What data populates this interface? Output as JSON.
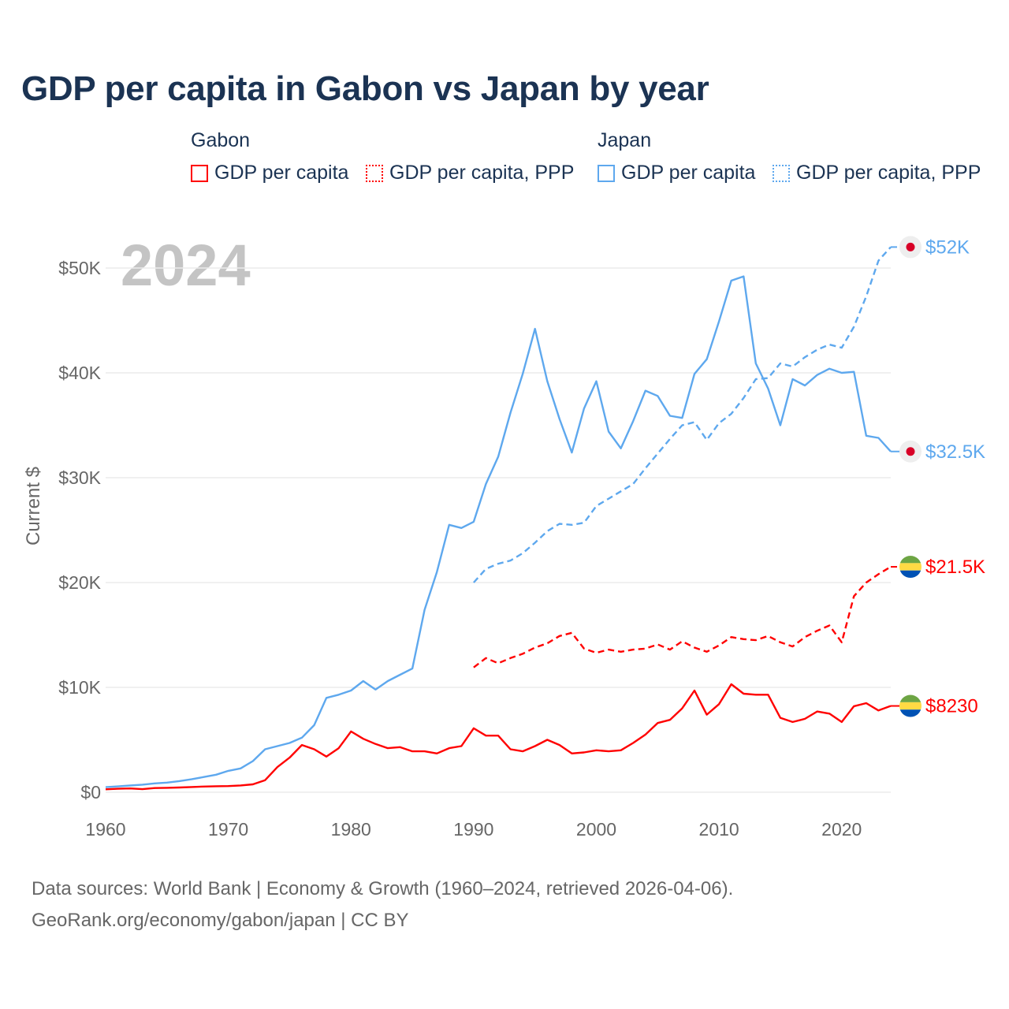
{
  "title": "GDP per capita in Gabon vs Japan by year",
  "legend": {
    "groups": [
      "Gabon",
      "Japan"
    ],
    "items": [
      {
        "label": "GDP per capita",
        "country": "Gabon",
        "style": "solid",
        "color": "#ff0000"
      },
      {
        "label": "GDP per capita, PPP",
        "country": "Gabon",
        "style": "dotted",
        "color": "#ff0000"
      },
      {
        "label": "GDP per capita",
        "country": "Japan",
        "style": "solid",
        "color": "#5ea8ee"
      },
      {
        "label": "GDP per capita, PPP",
        "country": "Japan",
        "style": "dotted",
        "color": "#5ea8ee"
      }
    ]
  },
  "source": {
    "line1": "Data sources: World Bank | Economy & Growth (1960–2024, retrieved 2026-04-06).",
    "line2": "GeoRank.org/economy/gabon/japan | CC BY"
  },
  "chart_data": {
    "type": "line",
    "title": "GDP per capita in Gabon vs Japan by year",
    "year_watermark": "2024",
    "xlabel": "",
    "ylabel": "Current $",
    "xlim": [
      1960,
      2024
    ],
    "ylim": [
      0,
      50000
    ],
    "x_ticks": [
      1960,
      1970,
      1980,
      1990,
      2000,
      2010,
      2020
    ],
    "x_tick_labels": [
      "1960",
      "1970",
      "1980",
      "1990",
      "2000",
      "2010",
      "2020"
    ],
    "y_ticks": [
      0,
      10000,
      20000,
      30000,
      40000,
      50000
    ],
    "y_tick_labels": [
      "$0",
      "$10K",
      "$20K",
      "$30K",
      "$40K",
      "$50K"
    ],
    "grid": true,
    "legend_position": "top",
    "series": [
      {
        "name": "Japan GDP per capita",
        "color": "#5ea8ee",
        "dash": false,
        "start": 1960,
        "end_label": "$32.5K",
        "flag": "japan",
        "values": [
          480,
          560,
          640,
          720,
          840,
          920,
          1060,
          1230,
          1450,
          1670,
          2040,
          2270,
          2970,
          4100,
          4400,
          4700,
          5200,
          6400,
          9000,
          9300,
          9700,
          10600,
          9800,
          10600,
          11200,
          11800,
          17400,
          21000,
          25500,
          25200,
          25800,
          29400,
          32000,
          36200,
          39900,
          44200,
          39200,
          35600,
          32400,
          36600,
          39200,
          34400,
          32800,
          35400,
          38300,
          37800,
          35900,
          35700,
          39900,
          41300,
          44900,
          48800,
          49200,
          40900,
          38500,
          35000,
          39400,
          38800,
          39800,
          40400,
          40000,
          40100,
          34000,
          33800,
          32500
        ]
      },
      {
        "name": "Japan GDP per capita, PPP",
        "color": "#5ea8ee",
        "dash": true,
        "start": 1990,
        "end_label": "$52K",
        "flag": "japan",
        "values": [
          20000,
          21300,
          21800,
          22100,
          22800,
          23800,
          24900,
          25600,
          25500,
          25700,
          27300,
          28000,
          28700,
          29400,
          30900,
          32300,
          33700,
          35000,
          35300,
          33600,
          35200,
          36100,
          37600,
          39400,
          39500,
          40900,
          40600,
          41500,
          42200,
          42700,
          42400,
          44400,
          47300,
          50700,
          52000
        ]
      },
      {
        "name": "Gabon GDP per capita, PPP",
        "color": "#ff0000",
        "dash": true,
        "start": 1990,
        "end_label": "$21.5K",
        "flag": "gabon",
        "values": [
          11900,
          12800,
          12300,
          12800,
          13200,
          13800,
          14200,
          14900,
          15200,
          13700,
          13300,
          13600,
          13400,
          13600,
          13700,
          14100,
          13600,
          14400,
          13800,
          13400,
          14000,
          14800,
          14600,
          14500,
          14900,
          14300,
          13900,
          14800,
          15400,
          15900,
          14300,
          18700,
          20000,
          20800,
          21500
        ]
      },
      {
        "name": "Gabon GDP per capita",
        "color": "#ff0000",
        "dash": false,
        "start": 1960,
        "end_label": "$8230",
        "flag": "gabon",
        "values": [
          280,
          330,
          360,
          290,
          400,
          420,
          450,
          500,
          540,
          570,
          590,
          650,
          750,
          1150,
          2400,
          3300,
          4500,
          4100,
          3400,
          4200,
          5800,
          5100,
          4600,
          4200,
          4300,
          3900,
          3900,
          3700,
          4200,
          4400,
          6100,
          5400,
          5400,
          4100,
          3900,
          4400,
          5000,
          4500,
          3700,
          3800,
          4000,
          3900,
          4000,
          4700,
          5500,
          6600,
          6900,
          8000,
          9700,
          7400,
          8400,
          10300,
          9400,
          9300,
          9300,
          7100,
          6700,
          7000,
          7700,
          7500,
          6700,
          8200,
          8500,
          7800,
          8230
        ]
      }
    ]
  }
}
